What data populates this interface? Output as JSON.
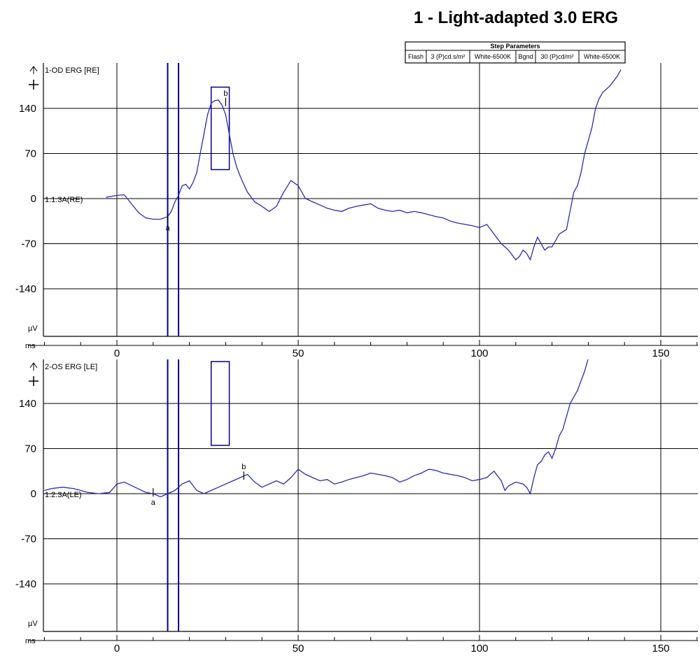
{
  "chart_data": {
    "type": "line",
    "title": "1 - Light-adapted 3.0 ERG",
    "step_parameters": {
      "header": "Step Parameters",
      "cells": [
        "Flash",
        "3 (P)cd.s/m²",
        "White-6500K",
        "Bgnd",
        "30 (P)cd/m²",
        "White-6500K"
      ]
    },
    "x_axis_label": "ms",
    "y_unit_label": "µV",
    "x_ticks": [
      0,
      50,
      100,
      150
    ],
    "y_ticks": [
      140,
      70,
      0,
      -70,
      -140
    ],
    "xlim": [
      -20,
      160
    ],
    "ylim": [
      -200,
      195
    ],
    "panels": [
      {
        "series_name": "1-OD ERG [RE]",
        "baseline_label": "1.1.3A(RE)",
        "cursors_ms": [
          14,
          17
        ],
        "marker_box": {
          "x_range": [
            26,
            31
          ],
          "y_range": [
            45,
            173
          ]
        },
        "markers": [
          {
            "label": "a",
            "x": 14,
            "y": -30
          },
          {
            "label": "b",
            "x": 30,
            "y": 150
          }
        ],
        "x": [
          -3,
          0,
          2,
          4,
          6,
          8,
          10,
          12,
          14,
          15,
          16,
          17,
          18,
          19,
          20,
          21,
          22,
          23,
          24,
          25,
          26,
          27,
          28,
          29,
          30,
          31,
          32,
          33,
          34,
          35,
          36,
          38,
          40,
          42,
          44,
          46,
          48,
          50,
          52,
          54,
          56,
          58,
          60,
          62,
          64,
          66,
          68,
          70,
          72,
          74,
          76,
          78,
          80,
          82,
          84,
          86,
          88,
          90,
          92,
          94,
          96,
          98,
          100,
          102,
          104,
          106,
          108,
          110,
          111,
          112,
          113,
          114,
          115,
          116,
          117,
          118,
          119,
          120,
          122,
          124,
          126,
          127,
          128,
          129,
          130,
          131,
          132,
          133,
          134,
          136,
          138,
          139
        ],
        "y": [
          2,
          5,
          6,
          -8,
          -22,
          -30,
          -32,
          -32,
          -28,
          -20,
          -5,
          5,
          20,
          22,
          15,
          25,
          40,
          70,
          100,
          130,
          148,
          152,
          153,
          145,
          130,
          100,
          70,
          50,
          35,
          22,
          10,
          -5,
          -12,
          -20,
          -12,
          10,
          28,
          20,
          0,
          -5,
          -10,
          -15,
          -18,
          -20,
          -15,
          -12,
          -10,
          -8,
          -15,
          -18,
          -20,
          -18,
          -22,
          -20,
          -22,
          -25,
          -28,
          -30,
          -35,
          -38,
          -40,
          -42,
          -45,
          -40,
          -55,
          -70,
          -80,
          -95,
          -90,
          -80,
          -85,
          -95,
          -75,
          -60,
          -70,
          -80,
          -75,
          -75,
          -55,
          -48,
          10,
          20,
          40,
          70,
          90,
          110,
          140,
          155,
          165,
          175,
          190,
          200
        ]
      },
      {
        "series_name": "2-OS ERG [LE]",
        "baseline_label": "1.2.3A(LE)",
        "cursors_ms": [
          14,
          17
        ],
        "marker_box": {
          "x_range": [
            26,
            31
          ],
          "y_range": [
            75,
            205
          ]
        },
        "markers": [
          {
            "label": "a",
            "x": 10,
            "y": 2
          },
          {
            "label": "b",
            "x": 35,
            "y": 28
          }
        ],
        "x": [
          -20,
          -18,
          -15,
          -12,
          -10,
          -8,
          -5,
          -2,
          0,
          2,
          5,
          8,
          10,
          12,
          14,
          16,
          18,
          20,
          22,
          24,
          26,
          28,
          30,
          32,
          34,
          36,
          38,
          40,
          42,
          44,
          46,
          48,
          50,
          52,
          54,
          56,
          58,
          60,
          62,
          64,
          66,
          68,
          70,
          72,
          74,
          76,
          78,
          80,
          82,
          84,
          86,
          88,
          90,
          92,
          94,
          96,
          98,
          100,
          102,
          104,
          106,
          107,
          108,
          110,
          112,
          113,
          114,
          115,
          116,
          117,
          118,
          119,
          120,
          121,
          122,
          123,
          124,
          125,
          126,
          127,
          128,
          129,
          130
        ],
        "y": [
          5,
          8,
          10,
          8,
          5,
          2,
          0,
          2,
          15,
          18,
          10,
          2,
          0,
          -5,
          0,
          5,
          15,
          20,
          5,
          0,
          5,
          10,
          15,
          20,
          25,
          30,
          18,
          10,
          15,
          20,
          15,
          25,
          38,
          30,
          25,
          20,
          22,
          15,
          18,
          22,
          25,
          28,
          32,
          30,
          28,
          25,
          18,
          22,
          28,
          32,
          38,
          36,
          32,
          30,
          28,
          25,
          20,
          22,
          25,
          35,
          20,
          5,
          12,
          18,
          15,
          10,
          0,
          25,
          45,
          50,
          60,
          65,
          55,
          70,
          90,
          100,
          120,
          140,
          150,
          160,
          175,
          190,
          210
        ]
      }
    ]
  }
}
